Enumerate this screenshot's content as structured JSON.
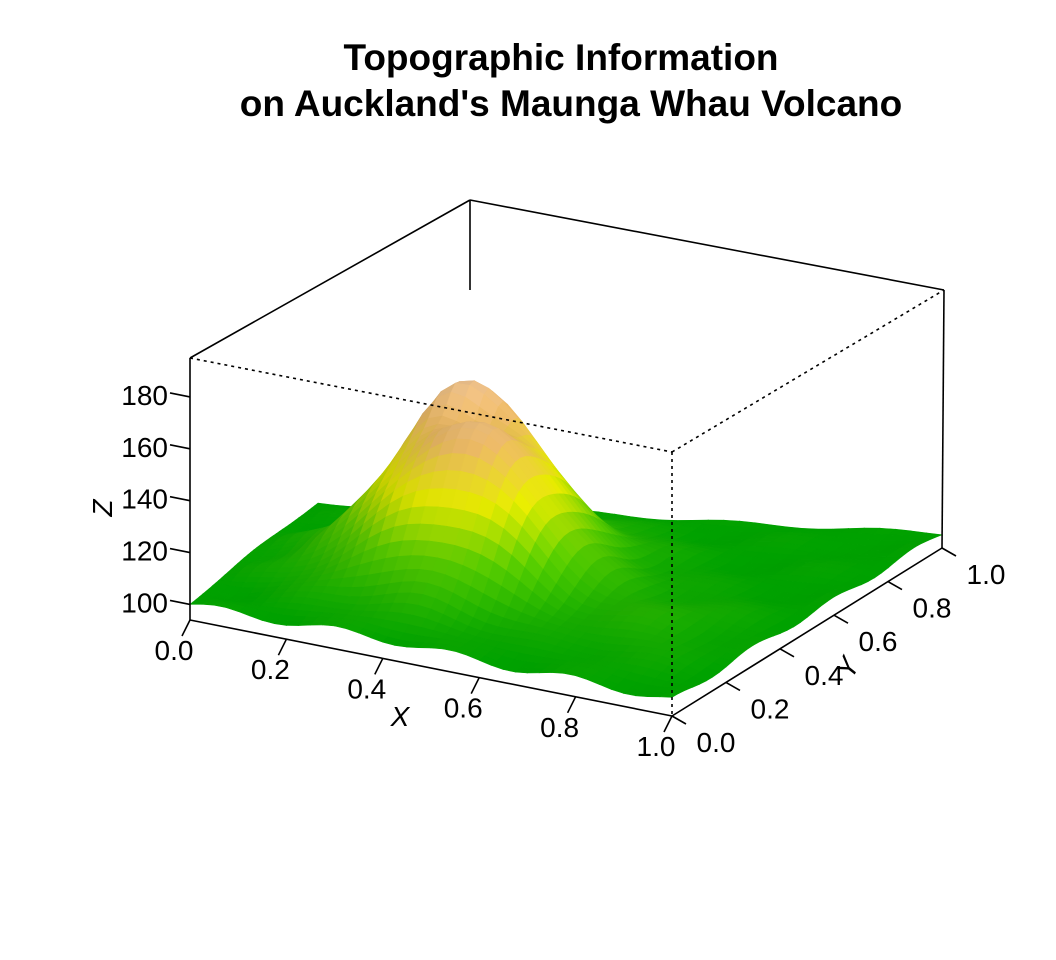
{
  "chart_data": {
    "type": "surface3d",
    "title_lines": [
      "Topographic Information",
      "on Auckland's Maunga Whau Volcano"
    ],
    "axes": {
      "x": {
        "label": "X",
        "ticks": [
          "0.0",
          "0.2",
          "0.4",
          "0.6",
          "0.8",
          "1.0"
        ],
        "range": [
          0,
          1
        ]
      },
      "y": {
        "label": "Y",
        "ticks": [
          "0.0",
          "0.2",
          "0.4",
          "0.6",
          "0.8",
          "1.0"
        ],
        "range": [
          0,
          1
        ]
      },
      "z": {
        "label": "Z",
        "ticks": [
          "100",
          "120",
          "140",
          "160",
          "180"
        ],
        "range": [
          94,
          195
        ]
      }
    },
    "grid": false,
    "legend": "none",
    "colors": {
      "low": "#00a000",
      "mid_low": "#55c000",
      "mid": "#d8dc00",
      "mid_high": "#e0b060",
      "high": "#e8c0a0",
      "peak": "#f2f2f2"
    },
    "surface_description_values": {
      "base_elevation": 100,
      "peak_elevation": 195,
      "peak_location": {
        "x": 0.35,
        "y": 0.45
      }
    }
  }
}
